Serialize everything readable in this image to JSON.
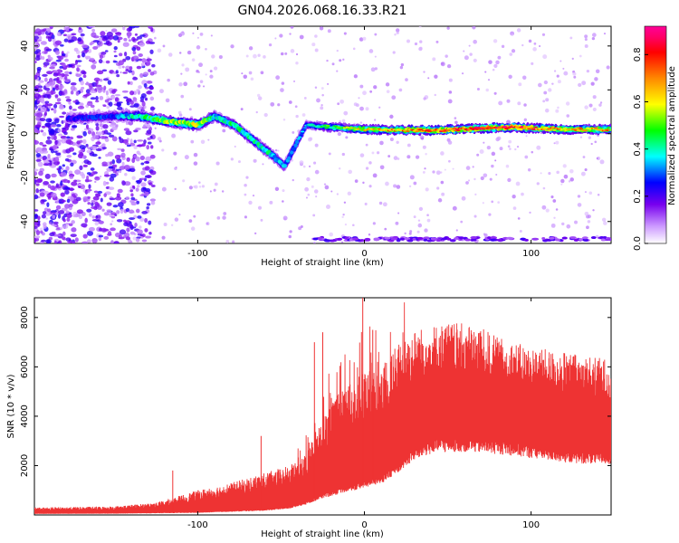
{
  "chart_data": [
    {
      "type": "heatmap",
      "title": "GN04.2026.068.16.33.R21",
      "xlabel": "Height of straight line (km)",
      "ylabel": "Frequency (Hz)",
      "xlim": [
        -198,
        148
      ],
      "ylim": [
        -50,
        49
      ],
      "xticks": [
        -100,
        0,
        100
      ],
      "yticks": [
        40,
        20,
        0,
        -20,
        -40
      ],
      "colorbar": {
        "label": "Normalized spectral amplitude",
        "range": [
          0,
          0.92
        ],
        "ticks": [
          0.0,
          0.2,
          0.4,
          0.6,
          0.8
        ],
        "colormap": [
          "#ffffff",
          "#cc99ff",
          "#7700ee",
          "#0000ff",
          "#00ffff",
          "#00ff00",
          "#ffff00",
          "#ff8800",
          "#ff0000",
          "#ff0066",
          "#ff0099"
        ]
      },
      "features": {
        "noise_region_x": [
          -198,
          -130
        ],
        "ridge": [
          {
            "x": -178,
            "y": 7,
            "amp": 0.25
          },
          {
            "x": -150,
            "y": 8,
            "amp": 0.3
          },
          {
            "x": -135,
            "y": 8,
            "amp": 0.45
          },
          {
            "x": -120,
            "y": 6,
            "amp": 0.55
          },
          {
            "x": -100,
            "y": 4,
            "amp": 0.6
          },
          {
            "x": -90,
            "y": 8,
            "amp": 0.4
          },
          {
            "x": -78,
            "y": 4,
            "amp": 0.45
          },
          {
            "x": -65,
            "y": -4,
            "amp": 0.45
          },
          {
            "x": -55,
            "y": -10,
            "amp": 0.4
          },
          {
            "x": -48,
            "y": -15,
            "amp": 0.35
          },
          {
            "x": -35,
            "y": 4,
            "amp": 0.35
          },
          {
            "x": -20,
            "y": 3,
            "amp": 0.5
          },
          {
            "x": 0,
            "y": 2,
            "amp": 0.65
          },
          {
            "x": 40,
            "y": 1.5,
            "amp": 0.8
          },
          {
            "x": 88,
            "y": 3,
            "amp": 0.85
          },
          {
            "x": 120,
            "y": 2,
            "amp": 0.7
          },
          {
            "x": 148,
            "y": 2,
            "amp": 0.7
          }
        ],
        "bottom_band_y": -48
      }
    },
    {
      "type": "line",
      "title": "",
      "xlabel": "Height of straight line (km)",
      "ylabel": "SNR (10 * v/v)",
      "xlim": [
        -198,
        148
      ],
      "ylim": [
        0,
        8800
      ],
      "xticks": [
        -100,
        0,
        100
      ],
      "yticks": [
        2000,
        4000,
        6000,
        8000
      ],
      "color": "#ee3333",
      "envelope": {
        "x": [
          -198,
          -150,
          -125,
          -100,
          -80,
          -60,
          -45,
          -35,
          -25,
          -15,
          -5,
          0,
          10,
          20,
          30,
          40,
          50,
          60,
          70,
          80,
          90,
          100,
          110,
          120,
          130,
          140,
          148
        ],
        "low": [
          50,
          60,
          80,
          100,
          150,
          200,
          300,
          500,
          800,
          1000,
          1200,
          1300,
          1500,
          2000,
          2600,
          2900,
          3000,
          3000,
          2950,
          2900,
          2800,
          2700,
          2600,
          2500,
          2450,
          2400,
          2400
        ],
        "high": [
          300,
          350,
          500,
          1000,
          1300,
          1700,
          2000,
          2500,
          4000,
          5000,
          5500,
          5800,
          6000,
          7000,
          7500,
          7700,
          7800,
          7750,
          7600,
          7200,
          7000,
          6800,
          6700,
          6600,
          6500,
          6400,
          6300
        ]
      },
      "spikes": [
        {
          "x": -115,
          "y": 1800
        },
        {
          "x": -62,
          "y": 3200
        },
        {
          "x": -30,
          "y": 7000
        },
        {
          "x": -25,
          "y": 7400
        },
        {
          "x": -1,
          "y": 8800
        },
        {
          "x": 5,
          "y": 7500
        }
      ]
    }
  ]
}
